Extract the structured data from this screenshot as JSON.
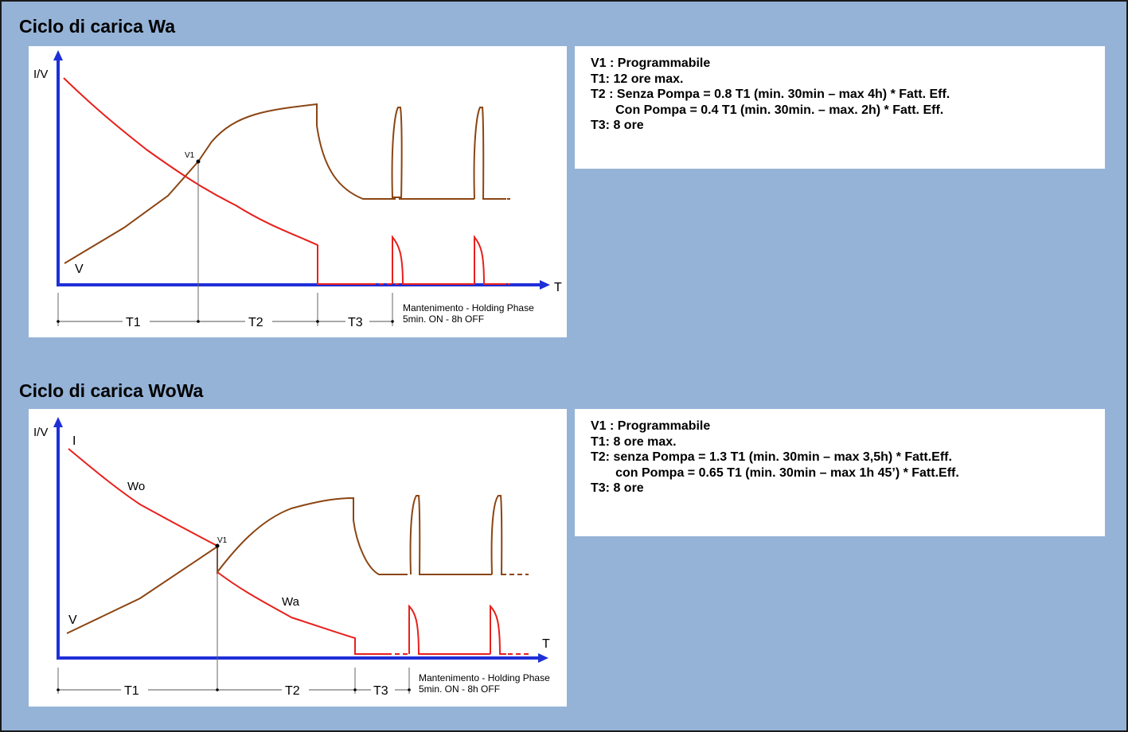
{
  "colors": {
    "background": "#95b3d7",
    "axis": "#1f2fd8",
    "current_curve": "#e8201c",
    "voltage_curve": "#8b4513",
    "box": "#ffffff"
  },
  "sections": [
    {
      "title": "Ciclo di carica Wa",
      "diagram": {
        "y_axis_label": "I/V",
        "x_axis_label": "T",
        "v_label": "V",
        "v1_label": "V1",
        "phases": [
          "T1",
          "T2",
          "T3"
        ],
        "holding_line1": "Mantenimento - Holding Phase",
        "holding_line2": "5min. ON - 8h OFF"
      },
      "info": [
        "V1 : Programmabile",
        "T1: 12 ore max.",
        "T2 : Senza Pompa = 0.8 T1 (min. 30min – max 4h) * Fatt. Eff.",
        "       Con Pompa = 0.4 T1 (min. 30min. – max. 2h) * Fatt. Eff.",
        "T3: 8 ore"
      ]
    },
    {
      "title": "Ciclo di carica WoWa",
      "diagram": {
        "y_axis_label": "I/V",
        "x_axis_label": "T",
        "i_label": "I",
        "v_label": "V",
        "v1_label": "V1",
        "wo_label": "Wo",
        "wa_label": "Wa",
        "phases": [
          "T1",
          "T2",
          "T3"
        ],
        "holding_line1": "Mantenimento - Holding Phase",
        "holding_line2": "5min. ON - 8h OFF"
      },
      "info": [
        "V1 : Programmabile",
        "T1: 8 ore max.",
        "T2: senza Pompa = 1.3 T1 (min. 30min – max 3,5h) * Fatt.Eff.",
        "       con Pompa = 0.65 T1 (min. 30min – max 1h 45’) * Fatt.Eff.",
        "T3: 8 ore"
      ]
    }
  ]
}
